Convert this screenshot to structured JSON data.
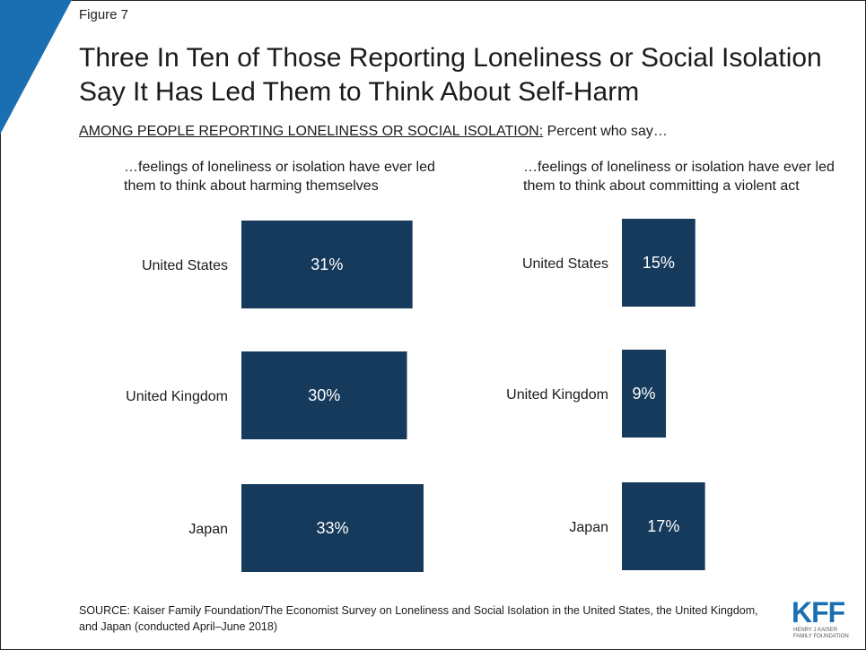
{
  "figure_label": "Figure 7",
  "title": "Three In Ten of Those Reporting Loneliness or Social Isolation Say It Has Led Them to Think About Self-Harm",
  "subtitle_underlined": "AMONG PEOPLE REPORTING LONELINESS OR SOCIAL ISOLATION:",
  "subtitle_rest": " Percent who say…",
  "source": "SOURCE: Kaiser Family Foundation/The Economist Survey on Loneliness and Social Isolation in the United States, the United Kingdom, and Japan (conducted April–June 2018)",
  "logo": {
    "text": "KFF",
    "line1": "HENRY J KAISER",
    "line2": "FAMILY FOUNDATION"
  },
  "colors": {
    "bar": "#163a5c",
    "accent": "#1a6fb3",
    "bar_text": "#ffffff"
  },
  "chart_data": [
    {
      "type": "bar",
      "orientation": "horizontal",
      "title": "…feelings of loneliness or isolation have ever led them to think about harming themselves",
      "categories": [
        "United States",
        "United Kingdom",
        "Japan"
      ],
      "values": [
        31,
        30,
        33
      ],
      "labels": [
        "31%",
        "30%",
        "33%"
      ]
    },
    {
      "type": "bar",
      "orientation": "horizontal",
      "title": "…feelings of loneliness or isolation have ever led them to think about committing a violent act",
      "categories": [
        "United States",
        "United Kingdom",
        "Japan"
      ],
      "values": [
        15,
        9,
        17
      ],
      "labels": [
        "15%",
        "9%",
        "17%"
      ]
    }
  ]
}
